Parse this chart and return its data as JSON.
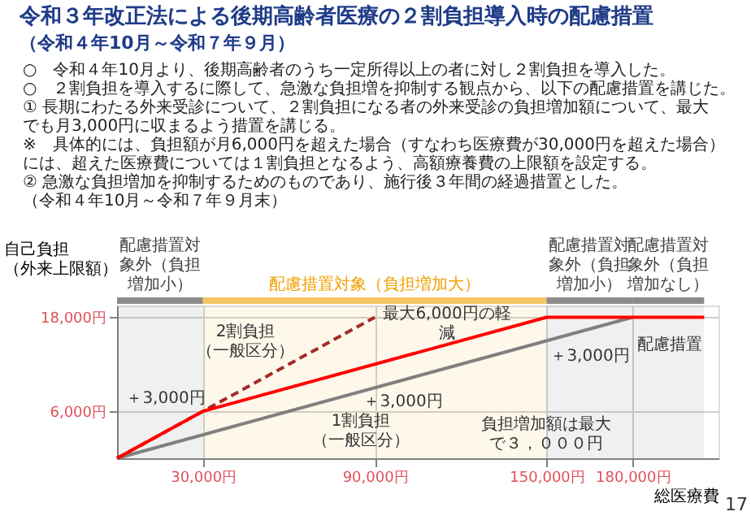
{
  "chart_data": {
    "type": "line",
    "title": "令和３年改正法による後期高齢者医療の２割負担導入時の配慮措置",
    "subtitle": "（令和４年10月～令和７年９月）",
    "ylabel": "自己負担（外来上限額）",
    "xlabel": "総医療費",
    "xlim": [
      0,
      210000
    ],
    "ylim": [
      0,
      19500
    ],
    "xticks": [
      {
        "value": 30000,
        "label": "30,000円"
      },
      {
        "value": 90000,
        "label": "90,000円"
      },
      {
        "value": 150000,
        "label": "150,000円"
      },
      {
        "value": 180000,
        "label": "180,000円"
      }
    ],
    "yticks": [
      {
        "value": 6000,
        "label": "6,000円"
      },
      {
        "value": 18000,
        "label": "18,000円"
      }
    ],
    "grid": true,
    "series": [
      {
        "color": "#808080",
        "line_style": "solid",
        "x": [
          0,
          180000
        ],
        "values": [
          0,
          18000
        ]
      },
      {
        "color": "#a52a2a",
        "line_style": "dashed",
        "x": [
          0,
          90000
        ],
        "values": [
          0,
          18000
        ]
      },
      {
        "color": "#ff0000",
        "line_style": "solid",
        "x": [
          0,
          30000,
          150000,
          205000
        ],
        "values": [
          0,
          6000,
          18000,
          18000
        ]
      }
    ],
    "bands": [
      {
        "axis": "x",
        "from": 0,
        "to": 30000,
        "label": "配慮措置対象外（負担増加小）",
        "color": "#404040"
      },
      {
        "axis": "x",
        "from": 30000,
        "to": 150000,
        "label": "配慮措置対象（負担増加大）",
        "color": "#f0a000"
      },
      {
        "axis": "x",
        "from": 150000,
        "to": 180000,
        "label": "配慮措置対象外（負担増加小）",
        "color": "#404040"
      },
      {
        "axis": "x",
        "from": 180000,
        "to": 205000,
        "label": "配慮措置対象外（負担増加なし）",
        "color": "#404040"
      }
    ],
    "annotations": [
      "○　令和４年10月より、後期高齢者のうち一定所得以上の者に対し２割負担を導入した。",
      "○　２割負担を導入するに際して、急激な負担増を抑制する観点から、以下の配慮措置を講じた。",
      "① 長期にわたる外来受診について、２割負担になる者の外来受診の負担増加額について、最大でも月3,000円に収まるよう措置を講じる。",
      "※　具体的には、負担額が月6,000円を超えた場合（すなわち医療費が30,000円を超えた場合）には、超えた医療費については１割負担となるよう、高額療養費の上限額を設定する。",
      "② 急激な負担増加を抑制するためのものであり、施行後３年間の経過措置とした。（令和４年10月～令和７年９月末）",
      "2割負担（一般区分）",
      "1割負担（一般区分）",
      "最大6,000円の軽減",
      "＋3,000円",
      "＋3,000円",
      "＋3,000円",
      "配慮措置",
      "負担増加額は最大で３，０００円",
      "17"
    ]
  }
}
